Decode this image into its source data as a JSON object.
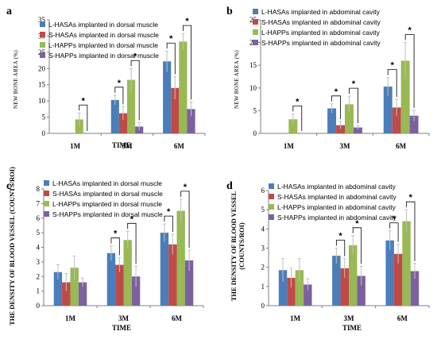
{
  "chart_data": [
    {
      "type": "bar",
      "panel_label": "a",
      "categories": [
        "1M",
        "3M",
        "6M"
      ],
      "xlabel": "TIME",
      "ylabel": "NEW BONE AREA (%)",
      "ylim": [
        0,
        35
      ],
      "yticks": [
        0,
        5,
        10,
        15,
        20,
        25,
        30,
        35
      ],
      "legend_position": "top-left",
      "series": [
        {
          "name": "L-HASAs implanted in dorsal muscle",
          "color": "#4a7ebb",
          "values": [
            0,
            10.3,
            22.2
          ],
          "errors": [
            0,
            1.5,
            3.2
          ]
        },
        {
          "name": "S-HASAs implanted in dorsal muscle",
          "color": "#be4b48",
          "values": [
            0,
            6.2,
            14.0
          ],
          "errors": [
            0,
            2.0,
            3.5
          ]
        },
        {
          "name": "L-HAPPs implanted in dorsal muscle",
          "color": "#98b954",
          "values": [
            4.3,
            16.5,
            28.3
          ],
          "errors": [
            2.0,
            3.5,
            2.5
          ]
        },
        {
          "name": "S-HAPPs implanted in dorsal muscle",
          "color": "#7d60a0",
          "values": [
            0,
            2.1,
            7.5
          ],
          "errors": [
            0,
            1.2,
            2.2
          ]
        }
      ],
      "significance": [
        {
          "category": "1M",
          "series": [
            2,
            3
          ],
          "label": "*"
        },
        {
          "category": "3M",
          "series": [
            0,
            1
          ],
          "label": "*"
        },
        {
          "category": "3M",
          "series": [
            2,
            3
          ],
          "label": "*"
        },
        {
          "category": "6M",
          "series": [
            0,
            1
          ],
          "label": "*"
        },
        {
          "category": "6M",
          "series": [
            2,
            3
          ],
          "label": "*"
        }
      ]
    },
    {
      "type": "bar",
      "panel_label": "b",
      "categories": [
        "1M",
        "3M",
        "6M"
      ],
      "xlabel": "TIME",
      "ylabel": "NEW BONE AREA (%)",
      "ylim": [
        0,
        25
      ],
      "yticks": [
        0,
        5,
        10,
        15,
        20,
        25
      ],
      "legend_position": "top-left",
      "series": [
        {
          "name": "L-HASAs implanted in abdominal cavity",
          "color": "#4a7ebb",
          "values": [
            0,
            5.5,
            10.3
          ],
          "errors": [
            0,
            1.0,
            2.0
          ]
        },
        {
          "name": "S-HASAs implanted in abdominal cavity",
          "color": "#be4b48",
          "values": [
            0,
            1.8,
            5.7
          ],
          "errors": [
            0,
            0.8,
            1.8
          ]
        },
        {
          "name": "L-HAPPs implanted in abdominal cavity",
          "color": "#98b954",
          "values": [
            3.1,
            6.4,
            16.0
          ],
          "errors": [
            1.2,
            1.8,
            4.0
          ]
        },
        {
          "name": "S-HAPPs implanted in abdominal cavity",
          "color": "#7d60a0",
          "values": [
            0,
            1.3,
            3.9
          ],
          "errors": [
            0,
            0.4,
            1.2
          ]
        }
      ],
      "significance": [
        {
          "category": "1M",
          "series": [
            2,
            3
          ],
          "label": "*"
        },
        {
          "category": "3M",
          "series": [
            0,
            1
          ],
          "label": "*"
        },
        {
          "category": "3M",
          "series": [
            2,
            3
          ],
          "label": "*"
        },
        {
          "category": "6M",
          "series": [
            0,
            1
          ],
          "label": "*"
        },
        {
          "category": "6M",
          "series": [
            2,
            3
          ],
          "label": "*"
        }
      ]
    },
    {
      "type": "bar",
      "panel_label": "c",
      "categories": [
        "1M",
        "3M",
        "6M"
      ],
      "xlabel": "TIME",
      "ylabel": "THE DENSITY OF BLOOD VESSEL (COUNTS/ROI)",
      "ylim": [
        0,
        8
      ],
      "yticks": [
        0,
        1,
        2,
        3,
        4,
        5,
        6,
        7,
        8
      ],
      "legend_position": "top-left",
      "series": [
        {
          "name": "L-HASAs implanted in dorsal muscle",
          "color": "#4a7ebb",
          "values": [
            2.3,
            3.6,
            5.0
          ],
          "errors": [
            0.5,
            0.5,
            0.6
          ]
        },
        {
          "name": "S-HASAs implanted in dorsal muscle",
          "color": "#be4b48",
          "values": [
            1.6,
            2.8,
            4.2
          ],
          "errors": [
            0.6,
            0.5,
            0.7
          ]
        },
        {
          "name": "L-HAPPs implanted in dorsal muscle",
          "color": "#98b954",
          "values": [
            2.6,
            4.5,
            6.5
          ],
          "errors": [
            0.8,
            0.6,
            0.8
          ]
        },
        {
          "name": "S-HAPPs implanted in dorsal muscle",
          "color": "#7d60a0",
          "values": [
            1.6,
            2.0,
            3.1
          ],
          "errors": [
            0.3,
            0.7,
            0.7
          ]
        }
      ],
      "significance": [
        {
          "category": "3M",
          "series": [
            0,
            1
          ],
          "label": "*"
        },
        {
          "category": "3M",
          "series": [
            2,
            3
          ],
          "label": "*"
        },
        {
          "category": "6M",
          "series": [
            0,
            1
          ],
          "label": "*"
        },
        {
          "category": "6M",
          "series": [
            2,
            3
          ],
          "label": "*"
        }
      ]
    },
    {
      "type": "bar",
      "panel_label": "d",
      "categories": [
        "1M",
        "3M",
        "6M"
      ],
      "xlabel": "TIME",
      "ylabel": "THE DENSITY OF BLOOD VESSEL (COUNTS/ROI)",
      "ylim": [
        0,
        6
      ],
      "yticks": [
        0,
        1,
        2,
        3,
        4,
        5,
        6
      ],
      "legend_position": "top-left",
      "series": [
        {
          "name": "L-HASAs implanted in abdominal cavity",
          "color": "#4a7ebb",
          "values": [
            1.85,
            2.6,
            3.4
          ],
          "errors": [
            0.6,
            0.4,
            0.5
          ]
        },
        {
          "name": "S-HASAs implanted in abdominal cavity",
          "color": "#be4b48",
          "values": [
            1.45,
            1.95,
            2.7
          ],
          "errors": [
            0.5,
            0.5,
            0.5
          ]
        },
        {
          "name": "L-HAPPs implanted in abdominal cavity",
          "color": "#98b954",
          "values": [
            1.85,
            3.15,
            4.4
          ],
          "errors": [
            0.6,
            0.5,
            0.6
          ]
        },
        {
          "name": "S-HAPPs implanted in abdominal cavity",
          "color": "#7d60a0",
          "values": [
            1.1,
            1.55,
            1.8
          ],
          "errors": [
            0.3,
            0.5,
            0.4
          ]
        }
      ],
      "significance": [
        {
          "category": "3M",
          "series": [
            0,
            1
          ],
          "label": "*"
        },
        {
          "category": "3M",
          "series": [
            2,
            3
          ],
          "label": "*"
        },
        {
          "category": "6M",
          "series": [
            0,
            1
          ],
          "label": "*"
        },
        {
          "category": "6M",
          "series": [
            2,
            3
          ],
          "label": "*"
        }
      ]
    }
  ]
}
